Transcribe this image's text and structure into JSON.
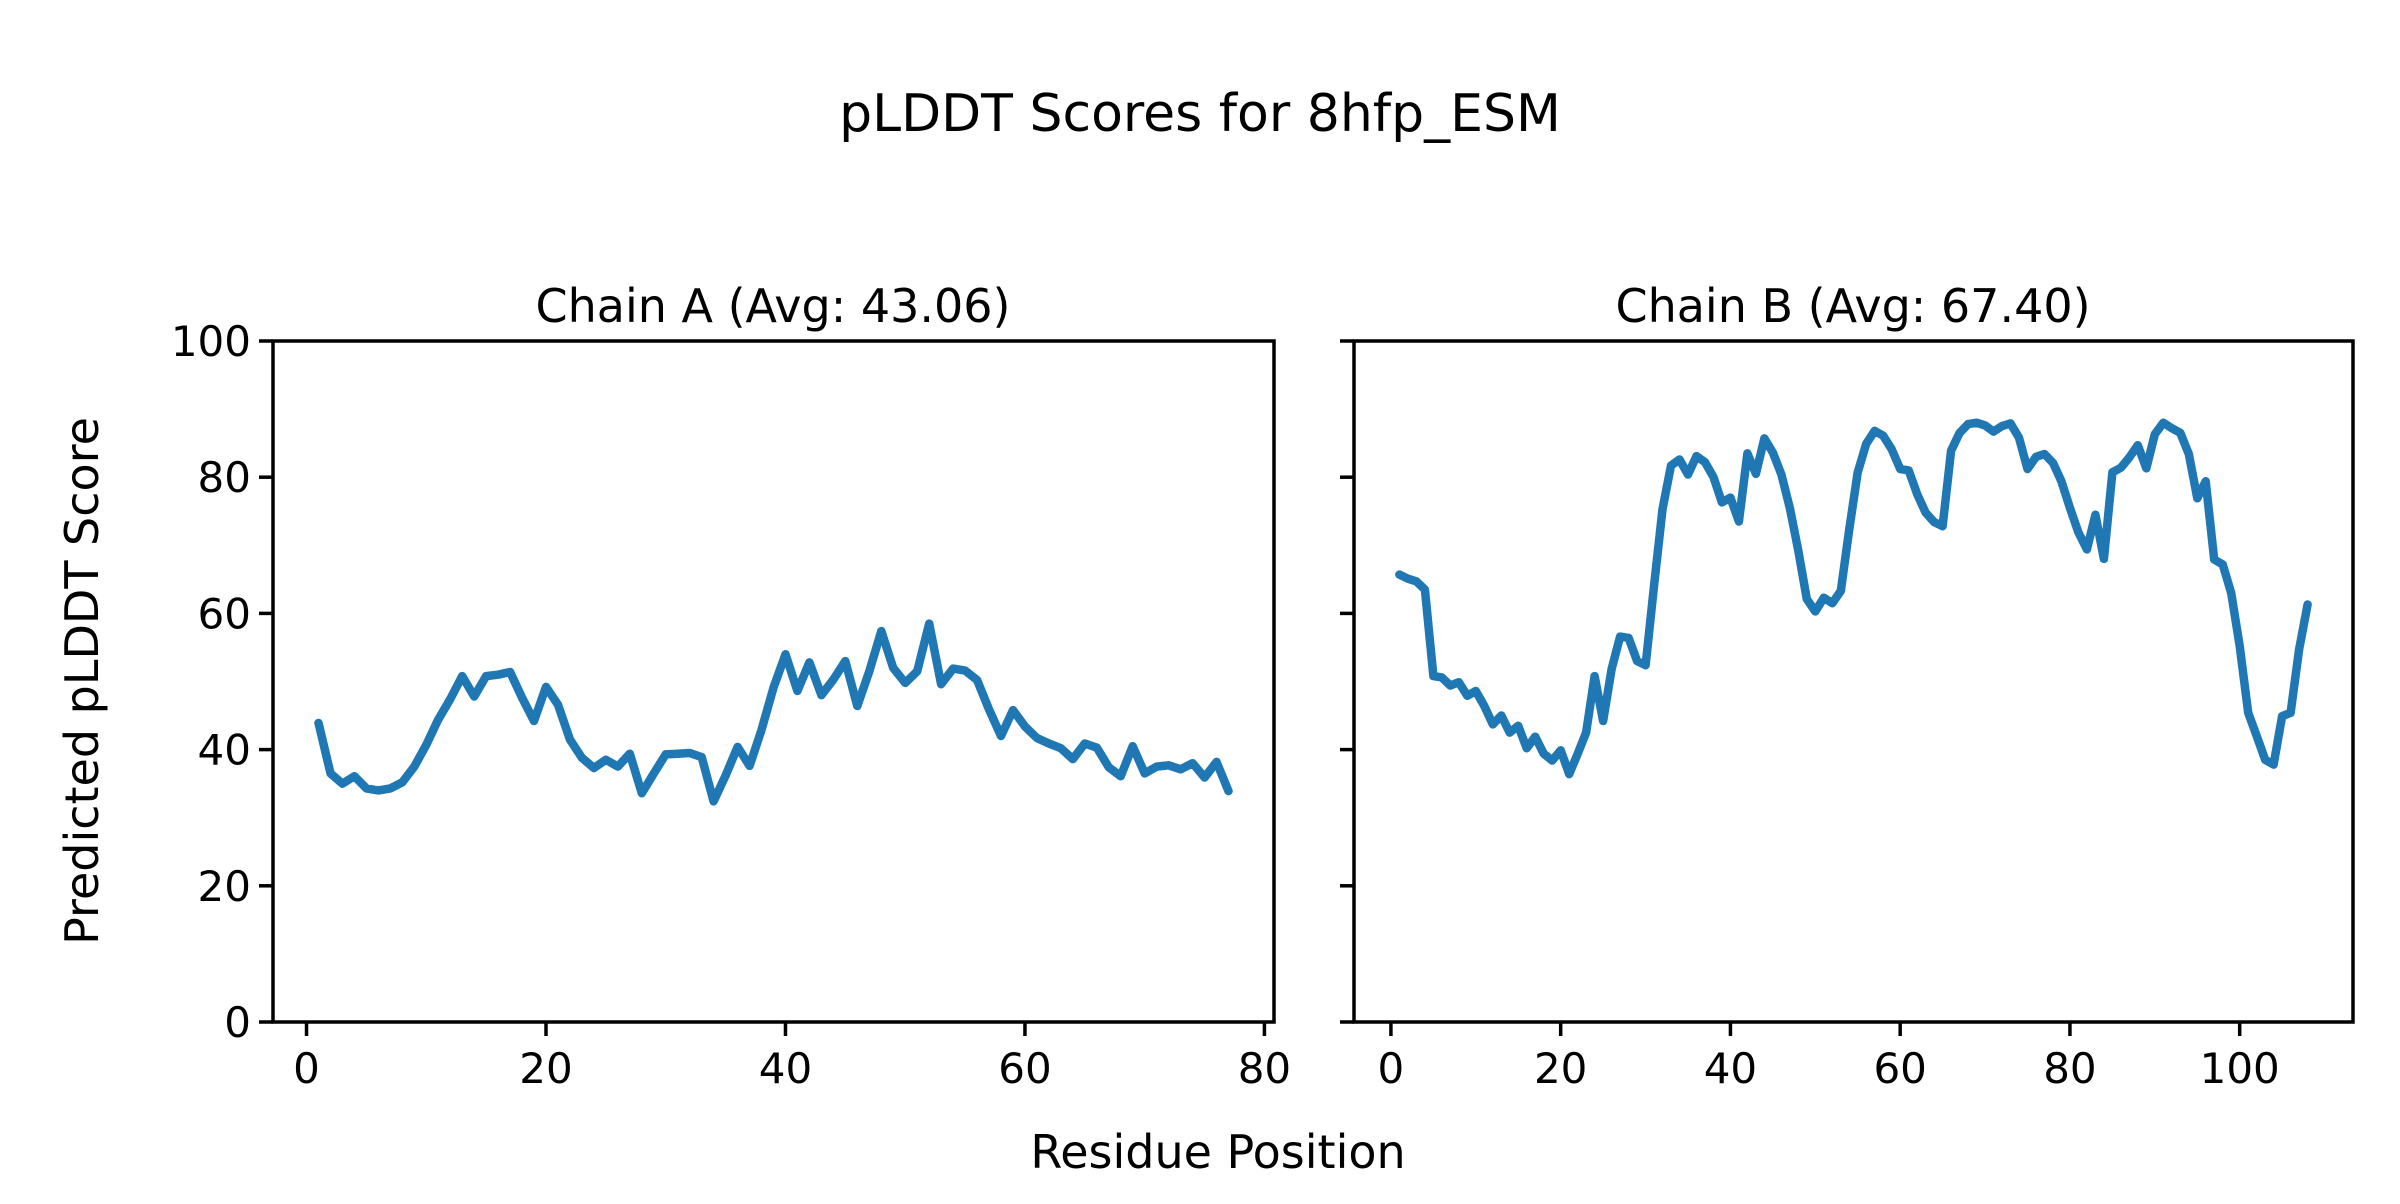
{
  "figure": {
    "title": "pLDDT Scores for 8hfp_ESM",
    "xlabel": "Residue Position",
    "ylabel": "Predicted pLDDT Score",
    "background": "#ffffff",
    "line_color": "#1f77b4",
    "axis_color": "#000000"
  },
  "chart_data": [
    {
      "type": "line",
      "title": "Chain A (Avg: 43.06)",
      "series_name": "Chain A",
      "avg": 43.06,
      "x_start": 1,
      "n_points": 77,
      "xlim": [
        -2.8,
        80.8
      ],
      "ylim": [
        0,
        100
      ],
      "xticks": [
        0,
        20,
        40,
        60,
        80
      ],
      "yticks": [
        0,
        20,
        40,
        60,
        80,
        100
      ],
      "ytick_labels_visible": true,
      "grid": false,
      "legend": "none",
      "values": [
        43.9,
        36.5,
        35.0,
        36.1,
        34.3,
        34.0,
        34.3,
        35.2,
        37.5,
        40.7,
        44.4,
        47.4,
        50.8,
        47.8,
        50.8,
        51.0,
        51.4,
        47.6,
        44.2,
        49.2,
        46.6,
        41.5,
        38.8,
        37.3,
        38.5,
        37.5,
        39.4,
        33.6,
        36.5,
        39.3,
        39.4,
        39.5,
        38.9,
        32.4,
        36.2,
        40.4,
        37.6,
        42.9,
        49.1,
        54.0,
        48.6,
        52.8,
        48.0,
        50.3,
        53.0,
        46.4,
        51.5,
        57.4,
        52.0,
        49.8,
        51.5,
        58.5,
        49.6,
        51.9,
        51.6,
        50.2,
        45.9,
        42.0,
        45.8,
        43.4,
        41.7,
        40.9,
        40.2,
        38.6,
        40.9,
        40.3,
        37.4,
        36.1,
        40.5,
        36.5,
        37.5,
        37.7,
        37.1,
        38.0,
        35.9,
        38.2,
        33.9
      ]
    },
    {
      "type": "line",
      "title": "Chain B (Avg: 67.40)",
      "series_name": "Chain B",
      "avg": 67.4,
      "x_start": 1,
      "n_points": 108,
      "xlim": [
        -4.35,
        113.35
      ],
      "ylim": [
        0,
        100
      ],
      "xticks": [
        0,
        20,
        40,
        60,
        80,
        100
      ],
      "yticks": [
        0,
        20,
        40,
        60,
        80,
        100
      ],
      "ytick_labels_visible": false,
      "grid": false,
      "legend": "none",
      "values": [
        65.7,
        65.1,
        64.7,
        63.5,
        50.8,
        50.6,
        49.4,
        49.9,
        47.9,
        48.6,
        46.4,
        43.7,
        45.0,
        42.5,
        43.5,
        40.2,
        41.9,
        39.4,
        38.4,
        39.9,
        36.4,
        39.4,
        42.5,
        50.8,
        44.2,
        51.8,
        56.6,
        56.4,
        53.0,
        52.4,
        64.0,
        75.3,
        81.7,
        82.6,
        80.4,
        83.1,
        82.2,
        80.0,
        76.3,
        77.0,
        73.5,
        83.5,
        80.5,
        85.7,
        83.6,
        80.4,
        75.5,
        69.2,
        62.1,
        60.3,
        62.3,
        61.5,
        63.3,
        72.4,
        80.7,
        84.9,
        86.8,
        86.1,
        84.1,
        81.2,
        81.0,
        77.5,
        74.8,
        73.4,
        72.8,
        83.9,
        86.5,
        87.8,
        88.0,
        87.6,
        86.7,
        87.5,
        87.9,
        85.8,
        81.2,
        83.0,
        83.4,
        82.1,
        79.4,
        75.5,
        71.9,
        69.4,
        74.5,
        68.0,
        80.7,
        81.4,
        82.9,
        84.7,
        81.3,
        86.3,
        88.0,
        87.2,
        86.5,
        83.4,
        76.9,
        79.4,
        67.9,
        67.2,
        63.0,
        55.2,
        45.4,
        42.0,
        38.5,
        37.8,
        44.9,
        45.4,
        54.7,
        61.3
      ]
    }
  ]
}
